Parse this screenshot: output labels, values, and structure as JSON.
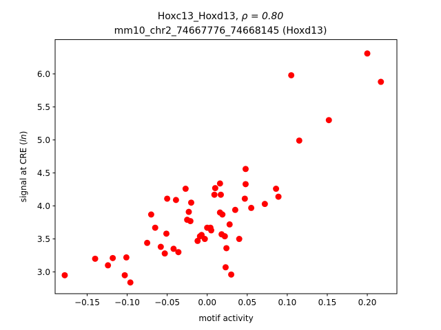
{
  "chart_data": {
    "type": "scatter",
    "title": "Hoxc13_Hoxd13, ρ = 0.80",
    "title_main": "Hoxc13_Hoxd13, ",
    "title_rho": "ρ = 0.80",
    "subtitle": "mm10_chr2_74667776_74668145 (Hoxd13)",
    "xlabel": "motif activity",
    "ylabel_prefix": "signal at CRE (",
    "ylabel_italic": "ln",
    "ylabel_suffix": ")",
    "xlim": [
      -0.19,
      0.237
    ],
    "ylim": [
      2.67,
      6.52
    ],
    "xticks": [
      -0.15,
      -0.1,
      -0.05,
      0.0,
      0.05,
      0.1,
      0.15,
      0.2
    ],
    "xtick_labels": [
      "−0.15",
      "−0.10",
      "−0.05",
      "0.00",
      "0.05",
      "0.10",
      "0.15",
      "0.20"
    ],
    "yticks": [
      3.0,
      3.5,
      4.0,
      4.5,
      5.0,
      5.5,
      6.0
    ],
    "ytick_labels": [
      "3.0",
      "3.5",
      "4.0",
      "4.5",
      "5.0",
      "5.5",
      "6.0"
    ],
    "grid": false,
    "marker_color": "#ff0000",
    "points": [
      {
        "x": -0.178,
        "y": 2.95
      },
      {
        "x": -0.14,
        "y": 3.2
      },
      {
        "x": -0.124,
        "y": 3.1
      },
      {
        "x": -0.118,
        "y": 3.21
      },
      {
        "x": -0.103,
        "y": 2.95
      },
      {
        "x": -0.101,
        "y": 3.22
      },
      {
        "x": -0.096,
        "y": 2.84
      },
      {
        "x": -0.075,
        "y": 3.44
      },
      {
        "x": -0.07,
        "y": 3.87
      },
      {
        "x": -0.065,
        "y": 3.67
      },
      {
        "x": -0.058,
        "y": 3.38
      },
      {
        "x": -0.053,
        "y": 3.28
      },
      {
        "x": -0.051,
        "y": 3.58
      },
      {
        "x": -0.05,
        "y": 4.11
      },
      {
        "x": -0.042,
        "y": 3.35
      },
      {
        "x": -0.039,
        "y": 4.09
      },
      {
        "x": -0.036,
        "y": 3.3
      },
      {
        "x": -0.027,
        "y": 4.26
      },
      {
        "x": -0.025,
        "y": 3.79
      },
      {
        "x": -0.023,
        "y": 3.91
      },
      {
        "x": -0.021,
        "y": 3.77
      },
      {
        "x": -0.02,
        "y": 4.05
      },
      {
        "x": -0.012,
        "y": 3.47
      },
      {
        "x": -0.009,
        "y": 3.54
      },
      {
        "x": -0.007,
        "y": 3.56
      },
      {
        "x": -0.003,
        "y": 3.5
      },
      {
        "x": 0.0,
        "y": 3.67
      },
      {
        "x": 0.004,
        "y": 3.67
      },
      {
        "x": 0.005,
        "y": 3.63
      },
      {
        "x": 0.009,
        "y": 4.17
      },
      {
        "x": 0.01,
        "y": 4.27
      },
      {
        "x": 0.016,
        "y": 4.34
      },
      {
        "x": 0.016,
        "y": 3.9
      },
      {
        "x": 0.017,
        "y": 4.17
      },
      {
        "x": 0.018,
        "y": 3.57
      },
      {
        "x": 0.019,
        "y": 3.87
      },
      {
        "x": 0.022,
        "y": 3.54
      },
      {
        "x": 0.023,
        "y": 3.07
      },
      {
        "x": 0.024,
        "y": 3.36
      },
      {
        "x": 0.028,
        "y": 3.72
      },
      {
        "x": 0.03,
        "y": 2.96
      },
      {
        "x": 0.035,
        "y": 3.94
      },
      {
        "x": 0.04,
        "y": 3.5
      },
      {
        "x": 0.047,
        "y": 4.11
      },
      {
        "x": 0.048,
        "y": 4.33
      },
      {
        "x": 0.048,
        "y": 4.56
      },
      {
        "x": 0.055,
        "y": 3.97
      },
      {
        "x": 0.072,
        "y": 4.03
      },
      {
        "x": 0.086,
        "y": 4.26
      },
      {
        "x": 0.089,
        "y": 4.14
      },
      {
        "x": 0.105,
        "y": 5.98
      },
      {
        "x": 0.115,
        "y": 4.99
      },
      {
        "x": 0.152,
        "y": 5.3
      },
      {
        "x": 0.2,
        "y": 6.31
      },
      {
        "x": 0.217,
        "y": 5.88
      }
    ]
  }
}
